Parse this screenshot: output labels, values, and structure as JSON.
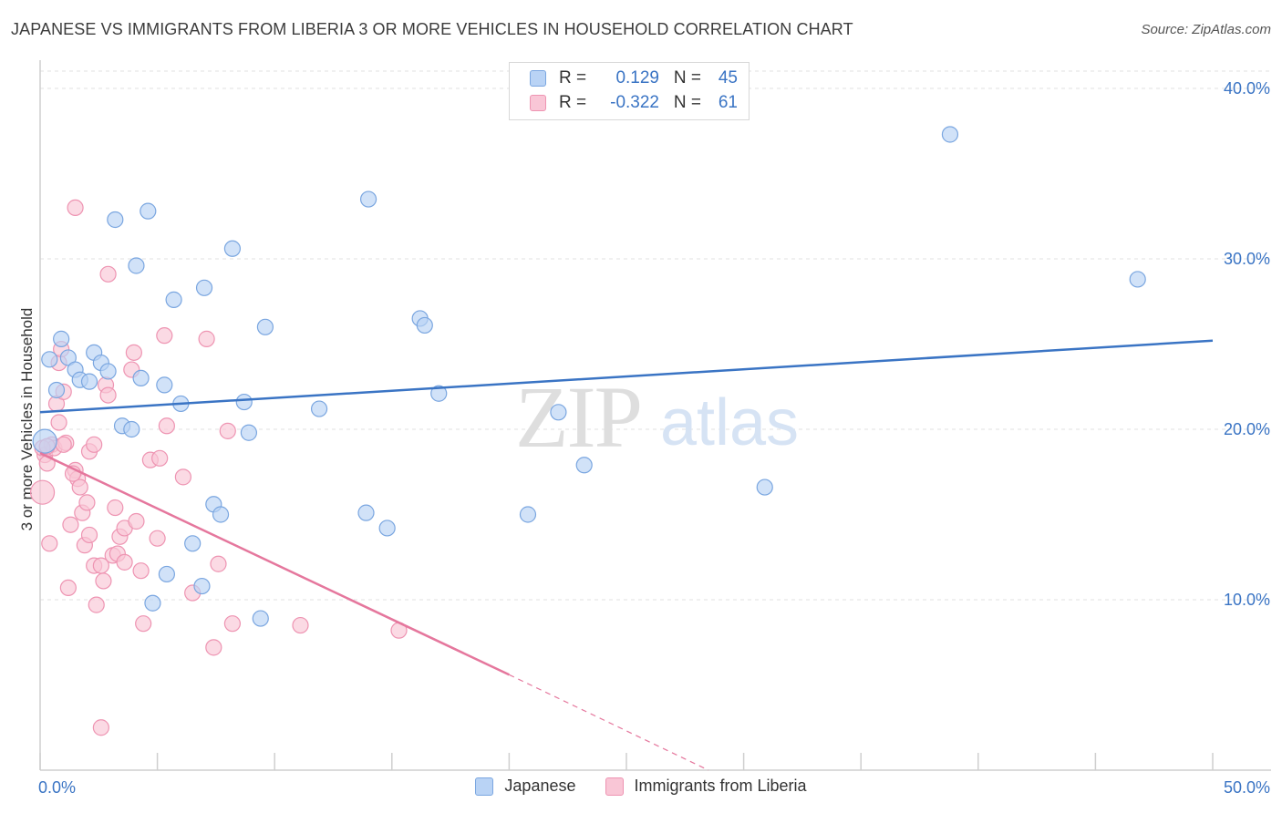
{
  "title": "JAPANESE VS IMMIGRANTS FROM LIBERIA 3 OR MORE VEHICLES IN HOUSEHOLD CORRELATION CHART",
  "source": "Source: ZipAtlas.com",
  "watermark": {
    "zip": "ZIP",
    "atlas": "atlas"
  },
  "legend": {
    "rows": [
      {
        "r_label": "R =",
        "r_value": "0.129",
        "n_label": "N =",
        "n_value": "45",
        "fill": "#b9d3f5",
        "stroke": "#7aa6e0"
      },
      {
        "r_label": "R =",
        "r_value": "-0.322",
        "n_label": "N =",
        "n_value": "61",
        "fill": "#f9c6d6",
        "stroke": "#ee94b2"
      }
    ]
  },
  "chart_data": {
    "type": "scatter",
    "title": "JAPANESE VS IMMIGRANTS FROM LIBERIA 3 OR MORE VEHICLES IN HOUSEHOLD CORRELATION CHART",
    "xlabel": "",
    "ylabel": "3 or more Vehicles in Household",
    "xlim": [
      0,
      50
    ],
    "ylim": [
      0,
      40
    ],
    "x_tick_labels": [
      "0.0%",
      "50.0%"
    ],
    "y_ticks": [
      10,
      20,
      30,
      40
    ],
    "y_tick_labels": [
      "10.0%",
      "20.0%",
      "30.0%",
      "40.0%"
    ],
    "grid": true,
    "legend_position": "bottom",
    "series": [
      {
        "name": "Japanese",
        "color": "#3a74c4",
        "fill": "#b9d3f5",
        "stroke": "#7aa6e0",
        "points": [
          [
            0.4,
            24.1
          ],
          [
            0.7,
            22.3
          ],
          [
            0.9,
            25.3
          ],
          [
            1.2,
            24.2
          ],
          [
            1.5,
            23.5
          ],
          [
            1.7,
            22.9
          ],
          [
            2.1,
            22.8
          ],
          [
            2.3,
            24.5
          ],
          [
            2.6,
            23.9
          ],
          [
            2.9,
            23.4
          ],
          [
            3.2,
            32.3
          ],
          [
            3.5,
            20.2
          ],
          [
            3.9,
            20.0
          ],
          [
            4.1,
            29.6
          ],
          [
            4.3,
            23.0
          ],
          [
            4.6,
            32.8
          ],
          [
            5.3,
            22.6
          ],
          [
            5.7,
            27.6
          ],
          [
            6.0,
            21.5
          ],
          [
            6.5,
            13.3
          ],
          [
            7.0,
            28.3
          ],
          [
            7.4,
            15.6
          ],
          [
            7.7,
            15.0
          ],
          [
            8.2,
            30.6
          ],
          [
            8.7,
            21.6
          ],
          [
            8.9,
            19.8
          ],
          [
            9.6,
            26.0
          ],
          [
            11.9,
            21.2
          ],
          [
            14.0,
            33.5
          ],
          [
            13.9,
            15.1
          ],
          [
            14.8,
            14.2
          ],
          [
            16.2,
            26.5
          ],
          [
            16.4,
            26.1
          ],
          [
            17.0,
            22.1
          ],
          [
            20.8,
            15.0
          ],
          [
            22.1,
            21.0
          ],
          [
            23.2,
            17.9
          ],
          [
            30.9,
            16.6
          ],
          [
            38.8,
            37.3
          ],
          [
            46.8,
            28.8
          ],
          [
            4.8,
            9.8
          ],
          [
            5.4,
            11.5
          ],
          [
            6.9,
            10.8
          ],
          [
            9.4,
            8.9
          ],
          [
            0.2,
            19.3
          ]
        ],
        "trend": {
          "x_start": 0,
          "y_start": 21.0,
          "x_end": 50,
          "y_end": 25.2
        }
      },
      {
        "name": "Immigrants from Liberia",
        "color": "#e5779d",
        "fill": "#f9c6d6",
        "stroke": "#ee94b2",
        "points": [
          [
            0.1,
            16.3
          ],
          [
            0.2,
            18.5
          ],
          [
            0.3,
            18.0
          ],
          [
            0.4,
            13.3
          ],
          [
            0.5,
            19.1
          ],
          [
            0.6,
            18.9
          ],
          [
            0.7,
            21.5
          ],
          [
            0.8,
            23.9
          ],
          [
            0.8,
            20.4
          ],
          [
            0.9,
            24.7
          ],
          [
            1.0,
            22.2
          ],
          [
            1.1,
            19.2
          ],
          [
            1.2,
            10.7
          ],
          [
            1.3,
            14.4
          ],
          [
            1.5,
            33.0
          ],
          [
            1.5,
            17.6
          ],
          [
            1.6,
            17.1
          ],
          [
            1.7,
            16.6
          ],
          [
            1.8,
            15.1
          ],
          [
            1.9,
            13.2
          ],
          [
            2.0,
            15.7
          ],
          [
            2.1,
            13.8
          ],
          [
            2.1,
            18.7
          ],
          [
            2.3,
            19.1
          ],
          [
            2.3,
            12.0
          ],
          [
            2.4,
            9.7
          ],
          [
            2.6,
            12.0
          ],
          [
            2.7,
            11.1
          ],
          [
            2.8,
            22.6
          ],
          [
            2.9,
            29.1
          ],
          [
            2.9,
            22.0
          ],
          [
            3.1,
            12.6
          ],
          [
            3.2,
            15.4
          ],
          [
            3.3,
            12.7
          ],
          [
            3.4,
            13.7
          ],
          [
            3.6,
            12.2
          ],
          [
            3.6,
            14.2
          ],
          [
            3.9,
            23.5
          ],
          [
            4.0,
            24.5
          ],
          [
            4.1,
            14.6
          ],
          [
            4.3,
            11.7
          ],
          [
            4.4,
            8.6
          ],
          [
            4.7,
            18.2
          ],
          [
            5.0,
            13.6
          ],
          [
            5.1,
            18.3
          ],
          [
            5.3,
            25.5
          ],
          [
            5.4,
            20.2
          ],
          [
            6.1,
            17.2
          ],
          [
            6.5,
            10.4
          ],
          [
            7.1,
            25.3
          ],
          [
            7.4,
            7.2
          ],
          [
            7.6,
            12.1
          ],
          [
            8.0,
            19.9
          ],
          [
            8.2,
            8.6
          ],
          [
            11.1,
            8.5
          ],
          [
            15.3,
            8.2
          ],
          [
            2.6,
            2.5
          ],
          [
            0.1,
            18.9
          ],
          [
            0.3,
            19.0
          ],
          [
            1.0,
            19.1
          ],
          [
            1.4,
            17.4
          ]
        ],
        "trend": {
          "x_start": 0,
          "y_start": 18.6,
          "x_end": 20,
          "y_end": 5.6,
          "dash_x_end": 28.5,
          "dash_y_end": 0.0
        }
      }
    ]
  }
}
